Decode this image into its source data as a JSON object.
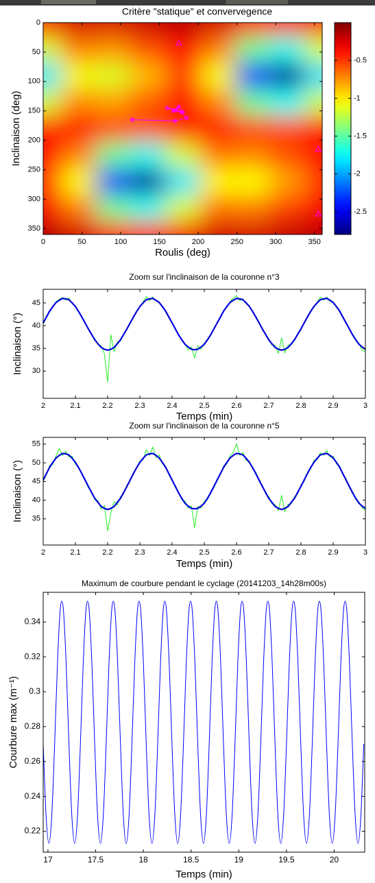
{
  "chart_data": [
    {
      "type": "heatmap",
      "title": "Critère \"statique\" et convervegence",
      "xlabel": "Roulis (deg)",
      "ylabel": "Inclinaison (deg)",
      "x": [
        0,
        45,
        90,
        135,
        180,
        225,
        270,
        315,
        360
      ],
      "y": [
        0,
        45,
        90,
        135,
        180,
        225,
        270,
        315,
        360
      ],
      "z": [
        [
          -0.33,
          -0.23,
          -0.24,
          -0.2,
          -0.16,
          -0.23,
          -0.4,
          -0.46,
          -0.33
        ],
        [
          -1.16,
          -0.7,
          -0.75,
          -0.56,
          -0.35,
          -0.69,
          -1.45,
          -1.72,
          -1.16
        ],
        [
          -1.83,
          -1.08,
          -1.16,
          -0.86,
          -0.52,
          -1.07,
          -2.31,
          -2.75,
          -1.83
        ],
        [
          -1.18,
          -0.72,
          -0.78,
          -0.59,
          -0.37,
          -0.71,
          -1.47,
          -1.74,
          -1.18
        ],
        [
          -0.39,
          -0.36,
          -0.54,
          -0.56,
          -0.39,
          -0.36,
          -0.53,
          -0.55,
          -0.39
        ],
        [
          -0.36,
          -0.7,
          -1.46,
          -1.73,
          -1.16,
          -0.68,
          -0.71,
          -0.55,
          -0.36
        ],
        [
          -0.49,
          -1.06,
          -2.31,
          -2.75,
          -1.82,
          -1.04,
          -1.06,
          -0.79,
          -0.49
        ],
        [
          -0.34,
          -0.69,
          -1.45,
          -1.72,
          -1.15,
          -0.67,
          -0.69,
          -0.52,
          -0.34
        ],
        [
          -0.15,
          -0.23,
          -0.4,
          -0.46,
          -0.33,
          -0.23,
          -0.23,
          -0.19,
          -0.15
        ]
      ],
      "xlim": [
        0,
        360
      ],
      "ylim": [
        0,
        360
      ],
      "yreverse": true,
      "xticks": [
        0,
        50,
        100,
        150,
        200,
        250,
        300,
        350
      ],
      "yticks": [
        0,
        50,
        100,
        150,
        200,
        250,
        300,
        350
      ],
      "colormap": "jet",
      "clim": [
        -2.8,
        0
      ],
      "cticks": [
        -0.5,
        -1,
        -1.5,
        -2,
        -2.5
      ],
      "markers": {
        "x": [
          175,
          355,
          355
        ],
        "y": [
          35,
          215,
          325
        ],
        "color": "#ff00ff"
      },
      "trajectory": {
        "x": [
          115,
          170,
          185,
          178,
          160,
          172,
          175,
          180,
          168
        ],
        "y": [
          165,
          167,
          162,
          152,
          145,
          148,
          143,
          152,
          150
        ],
        "color": "#ff00ff"
      }
    },
    {
      "type": "line",
      "title": "Zoom sur l'inclinaison de la couronne n°3",
      "xlabel": "Temps (min)",
      "ylabel": "Inclinaison (°)",
      "x": [
        2,
        2.01,
        2.02,
        2.03,
        2.04,
        2.05,
        2.06,
        2.07,
        2.08,
        2.09,
        2.1,
        2.11,
        2.12,
        2.13,
        2.14,
        2.15,
        2.16,
        2.17,
        2.18,
        2.19,
        2.2,
        2.21,
        2.22,
        2.23,
        2.24,
        2.25,
        2.26,
        2.27,
        2.28,
        2.29,
        2.3,
        2.31,
        2.32,
        2.33,
        2.34,
        2.35,
        2.36,
        2.37,
        2.38,
        2.39,
        2.4,
        2.41,
        2.42,
        2.43,
        2.44,
        2.45,
        2.46,
        2.47,
        2.48,
        2.49,
        2.5,
        2.51,
        2.52,
        2.53,
        2.54,
        2.55,
        2.56,
        2.57,
        2.58,
        2.59,
        2.6,
        2.61,
        2.62,
        2.63,
        2.64,
        2.65,
        2.66,
        2.67,
        2.68,
        2.69,
        2.7,
        2.71,
        2.72,
        2.73,
        2.74,
        2.75,
        2.76,
        2.77,
        2.78,
        2.79,
        2.8,
        2.81,
        2.82,
        2.83,
        2.84,
        2.85,
        2.86,
        2.87,
        2.88,
        2.89,
        2.9,
        2.91,
        2.92,
        2.93,
        2.94,
        2.95,
        2.96,
        2.97,
        2.98,
        2.99,
        3
      ],
      "series": [
        {
          "color": "#22ee22",
          "values": [
            40.4,
            41.7,
            43.4,
            44.0,
            45.3,
            45.8,
            46.2,
            45.6,
            46.1,
            44.8,
            44.4,
            43.0,
            42.1,
            40.4,
            39.5,
            37.9,
            37.2,
            35.8,
            35.6,
            33.8,
            27.6,
            38.0,
            34.3,
            36.4,
            36.6,
            38.3,
            39.1,
            40.8,
            41.7,
            43.3,
            44.0,
            45.3,
            46.4,
            45.5,
            46.3,
            45.4,
            45.3,
            44.0,
            43.4,
            41.7,
            40.8,
            39.1,
            38.2,
            36.7,
            36.1,
            34.6,
            35.3,
            32.9,
            35.6,
            34.8,
            36.2,
            36.7,
            38.2,
            39.1,
            40.8,
            41.7,
            43.4,
            44.0,
            45.3,
            46.1,
            46.6,
            45.5,
            45.9,
            44.8,
            44.4,
            42.9,
            42.1,
            40.4,
            39.5,
            37.9,
            37.1,
            35.7,
            35.6,
            33.9,
            37.3,
            34.0,
            35.7,
            35.8,
            36.7,
            38.3,
            39.1,
            40.8,
            41.7,
            43.3,
            44.0,
            45.2,
            46.3,
            45.6,
            46.3,
            45.3,
            45.3,
            44.0,
            43.4,
            41.7,
            40.8,
            39.1,
            38.2,
            36.7,
            36.2,
            34.5,
            34.3
          ]
        },
        {
          "color": "#0000dd",
          "values": [
            40.6,
            41.9,
            43.2,
            44.2,
            45.1,
            45.6,
            46.0,
            45.9,
            45.7,
            45.0,
            44.2,
            43.1,
            41.9,
            40.6,
            39.3,
            38.1,
            36.9,
            36.0,
            35.2,
            34.8,
            34.6,
            34.8,
            35.2,
            36.0,
            36.9,
            38.1,
            39.3,
            40.6,
            41.9,
            43.1,
            44.2,
            45.0,
            45.7,
            45.9,
            46.0,
            45.6,
            45.1,
            44.2,
            43.2,
            41.9,
            40.6,
            39.3,
            38.0,
            36.9,
            35.9,
            35.3,
            34.8,
            34.7,
            34.8,
            35.3,
            35.9,
            36.9,
            38.0,
            39.3,
            40.6,
            41.9,
            43.2,
            44.2,
            45.1,
            45.6,
            46.0,
            45.9,
            45.7,
            45.0,
            44.2,
            43.1,
            41.9,
            40.6,
            39.3,
            38.1,
            36.9,
            36.0,
            35.2,
            34.8,
            34.6,
            34.8,
            35.2,
            36.0,
            36.9,
            38.1,
            39.3,
            40.6,
            41.9,
            43.1,
            44.2,
            45.0,
            45.7,
            45.9,
            46.0,
            45.6,
            45.1,
            44.2,
            43.2,
            41.9,
            40.6,
            39.3,
            38.0,
            36.9,
            35.9,
            35.3,
            34.8
          ]
        }
      ],
      "xlim": [
        2,
        3
      ],
      "ylim": [
        24,
        48
      ],
      "xticks": [
        2,
        2.1,
        2.2,
        2.3,
        2.4,
        2.5,
        2.6,
        2.7,
        2.8,
        2.9,
        3
      ],
      "yticks": [
        30,
        35,
        40,
        45
      ]
    },
    {
      "type": "line",
      "title": "Zoom sur l'inclinaison de la couronne n°5",
      "xlabel": "Temps (min)",
      "ylabel": "Inclinaison (°)",
      "x": [
        2,
        2.01,
        2.02,
        2.03,
        2.04,
        2.05,
        2.06,
        2.07,
        2.08,
        2.09,
        2.1,
        2.11,
        2.12,
        2.13,
        2.14,
        2.15,
        2.16,
        2.17,
        2.18,
        2.19,
        2.2,
        2.21,
        2.22,
        2.23,
        2.24,
        2.25,
        2.26,
        2.27,
        2.28,
        2.29,
        2.3,
        2.31,
        2.32,
        2.33,
        2.34,
        2.35,
        2.36,
        2.37,
        2.38,
        2.39,
        2.4,
        2.41,
        2.42,
        2.43,
        2.44,
        2.45,
        2.46,
        2.47,
        2.48,
        2.49,
        2.5,
        2.51,
        2.52,
        2.53,
        2.54,
        2.55,
        2.56,
        2.57,
        2.58,
        2.59,
        2.6,
        2.61,
        2.62,
        2.63,
        2.64,
        2.65,
        2.66,
        2.67,
        2.68,
        2.69,
        2.7,
        2.71,
        2.72,
        2.73,
        2.74,
        2.75,
        2.76,
        2.77,
        2.78,
        2.79,
        2.8,
        2.81,
        2.82,
        2.83,
        2.84,
        2.85,
        2.86,
        2.87,
        2.88,
        2.89,
        2.9,
        2.91,
        2.92,
        2.93,
        2.94,
        2.95,
        2.96,
        2.97,
        2.98,
        2.99,
        3
      ],
      "series": [
        {
          "color": "#22ee22",
          "values": [
            45.0,
            46.8,
            49.3,
            49.6,
            51.9,
            53.8,
            51.9,
            53.1,
            51.5,
            51.8,
            49.6,
            48.9,
            46.8,
            45.7,
            43.3,
            42.5,
            40.1,
            39.9,
            37.6,
            38.6,
            31.8,
            36.5,
            39.6,
            38.7,
            41.0,
            41.7,
            44.1,
            45.1,
            47.5,
            48.4,
            50.5,
            50.8,
            53.5,
            52.0,
            54.2,
            51.4,
            52.1,
            49.7,
            49.1,
            46.8,
            45.7,
            43.4,
            42.3,
            40.1,
            39.8,
            37.9,
            38.5,
            32.6,
            38.4,
            37.9,
            39.7,
            40.1,
            42.4,
            43.3,
            45.8,
            46.8,
            49.2,
            49.7,
            51.9,
            52.7,
            55.1,
            52.0,
            52.8,
            50.6,
            50.5,
            48.3,
            47.5,
            45.0,
            44.1,
            41.7,
            41.0,
            39.0,
            38.8,
            37.2,
            41.3,
            36.9,
            38.9,
            39.0,
            41.0,
            41.7,
            44.1,
            45.0,
            47.5,
            48.3,
            50.6,
            50.8,
            52.7,
            52.0,
            53.3,
            51.6,
            51.8,
            49.7,
            49.2,
            46.8,
            45.8,
            43.3,
            42.4,
            40.1,
            39.6,
            38.0,
            37.3
          ]
        },
        {
          "color": "#0000dd",
          "values": [
            45.4,
            47.1,
            48.8,
            50.1,
            51.3,
            52.0,
            52.5,
            52.4,
            52.1,
            51.2,
            50.1,
            48.7,
            47.1,
            45.4,
            43.7,
            42.1,
            40.5,
            39.4,
            38.3,
            37.8,
            37.5,
            37.8,
            38.3,
            39.4,
            40.5,
            42.1,
            43.7,
            45.4,
            47.1,
            48.7,
            50.1,
            51.2,
            52.1,
            52.4,
            52.5,
            52.0,
            51.3,
            50.1,
            48.8,
            47.1,
            45.4,
            43.7,
            42.0,
            40.5,
            39.2,
            38.4,
            37.8,
            37.7,
            37.8,
            38.4,
            39.2,
            40.5,
            42.0,
            43.7,
            45.4,
            47.1,
            48.8,
            50.1,
            51.3,
            52.0,
            52.5,
            52.4,
            52.1,
            51.2,
            50.1,
            48.7,
            47.1,
            45.4,
            43.7,
            42.1,
            40.5,
            39.4,
            38.3,
            37.8,
            37.5,
            37.8,
            38.3,
            39.4,
            40.5,
            42.1,
            43.7,
            45.4,
            47.1,
            48.7,
            50.1,
            51.2,
            52.1,
            52.4,
            52.5,
            52.0,
            51.3,
            50.1,
            48.8,
            47.1,
            45.4,
            43.7,
            42.0,
            40.5,
            39.2,
            38.4,
            37.8
          ]
        }
      ],
      "xlim": [
        2,
        3
      ],
      "ylim": [
        28,
        56.8
      ],
      "xticks": [
        2,
        2.1,
        2.2,
        2.3,
        2.4,
        2.5,
        2.6,
        2.7,
        2.8,
        2.9,
        3
      ],
      "yticks": [
        35,
        40,
        45,
        50,
        55
      ]
    },
    {
      "type": "line",
      "title": "Maximum de courbure pendant le cyclage (20141203_14h28m00s)",
      "xlabel": "Temps (min)",
      "ylabel": "Courbure max (m⁻¹)",
      "x": [
        16.95,
        16.98,
        17.01,
        17.04,
        17.07,
        17.1,
        17.13,
        17.16,
        17.19,
        17.22,
        17.25,
        17.28,
        17.31,
        17.34,
        17.37,
        17.4,
        17.43,
        17.46,
        17.49,
        17.52,
        17.55,
        17.58,
        17.61,
        17.64,
        17.67,
        17.7,
        17.73,
        17.76,
        17.79,
        17.82,
        17.85,
        17.88,
        17.91,
        17.94,
        17.97,
        18,
        18.03,
        18.06,
        18.09,
        18.12,
        18.15,
        18.18,
        18.21,
        18.24,
        18.27,
        18.3,
        18.33,
        18.36,
        18.39,
        18.42,
        18.45,
        18.48,
        18.51,
        18.54,
        18.57,
        18.6,
        18.63,
        18.66,
        18.69,
        18.72,
        18.75,
        18.78,
        18.81,
        18.84,
        18.87,
        18.9,
        18.93,
        18.96,
        18.99,
        19.02,
        19.05,
        19.08,
        19.11,
        19.14,
        19.17,
        19.2,
        19.23,
        19.26,
        19.29,
        19.32,
        19.35,
        19.38,
        19.41,
        19.44,
        19.47,
        19.5,
        19.53,
        19.56,
        19.59,
        19.62,
        19.65,
        19.68,
        19.71,
        19.74,
        19.77,
        19.8,
        19.83,
        19.86,
        19.89,
        19.92,
        19.95,
        19.98,
        20.01,
        20.04,
        20.07,
        20.1,
        20.13,
        20.16,
        20.19,
        20.22,
        20.25,
        20.28,
        20.31
      ],
      "series": [
        {
          "color": "#0000ff",
          "values": [
            0.27,
            0.229,
            0.213,
            0.229,
            0.27,
            0.317,
            0.348,
            0.348,
            0.317,
            0.27,
            0.229,
            0.213,
            0.229,
            0.27,
            0.317,
            0.348,
            0.348,
            0.317,
            0.27,
            0.229,
            0.213,
            0.229,
            0.27,
            0.317,
            0.348,
            0.348,
            0.317,
            0.27,
            0.229,
            0.213,
            0.229,
            0.27,
            0.317,
            0.348,
            0.348,
            0.317,
            0.27,
            0.229,
            0.213,
            0.229,
            0.27,
            0.317,
            0.348,
            0.348,
            0.317,
            0.27,
            0.229,
            0.213,
            0.229,
            0.27,
            0.317,
            0.348,
            0.348,
            0.317,
            0.27,
            0.229,
            0.213,
            0.229,
            0.27,
            0.317,
            0.348,
            0.348,
            0.317,
            0.27,
            0.229,
            0.213,
            0.229,
            0.27,
            0.317,
            0.348,
            0.348,
            0.317,
            0.27,
            0.229,
            0.213,
            0.229,
            0.27,
            0.317,
            0.348,
            0.348,
            0.317,
            0.27,
            0.229,
            0.213,
            0.229,
            0.27,
            0.317,
            0.348,
            0.348,
            0.317,
            0.27,
            0.229,
            0.213,
            0.229,
            0.27,
            0.317,
            0.348,
            0.348,
            0.317,
            0.27,
            0.229,
            0.213,
            0.229,
            0.27,
            0.317,
            0.348,
            0.348,
            0.317,
            0.27,
            0.229,
            0.213,
            0.229,
            0.27
          ]
        }
      ],
      "xlim": [
        16.95,
        20.32
      ],
      "ylim": [
        0.208,
        0.357
      ],
      "xticks": [
        17,
        17.5,
        18,
        18.5,
        19,
        19.5,
        20
      ],
      "yticks": [
        0.22,
        0.24,
        0.26,
        0.28,
        0.3,
        0.32,
        0.34
      ]
    }
  ]
}
